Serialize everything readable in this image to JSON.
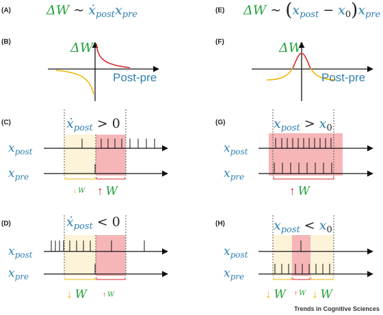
{
  "panels": {
    "A": {
      "label": "(A)",
      "eq_lhs": "ΔW",
      "eq_rel": " ~ ",
      "eq_rhs": "ẋpost xpre"
    },
    "B": {
      "label": "(B)",
      "dw": "ΔW",
      "x_axis": "Post-pre"
    },
    "C": {
      "label": "(C)",
      "title": "ẋpost > 0",
      "row_post": "xpost",
      "row_pre": "xpre",
      "left_arrow": "↓",
      "left_w": "W",
      "right_arrow": "↑",
      "right_w": "W"
    },
    "D": {
      "label": "(D)",
      "title": "ẋpost < 0",
      "row_post": "xpost",
      "row_pre": "xpre",
      "left_arrow": "↓",
      "left_w": "W",
      "right_arrow": "↑",
      "right_w": "W"
    },
    "E": {
      "label": "(E)",
      "eq_lhs": "ΔW",
      "eq_rel": " ~ ",
      "eq_rhs": "(xpost − x0) xpre"
    },
    "F": {
      "label": "(F)",
      "dw": "ΔW",
      "x_axis": "Post-pre"
    },
    "G": {
      "label": "(G)",
      "title": "xpost > x0",
      "row_post": "xpost",
      "row_pre": "xpre",
      "arrow": "↑",
      "w": "W"
    },
    "H": {
      "label": "(H)",
      "title": "xpost < x0",
      "row_post": "xpost",
      "row_pre": "xpre",
      "left_arrow": "↓",
      "left_w": "W",
      "mid_arrow": "↑",
      "mid_w": "W",
      "right_arrow": "↓",
      "right_w": "W"
    }
  },
  "footer": "Trends in Cognitive Sciences",
  "colors": {
    "blue": "#2e7fb0",
    "green": "#22a13a",
    "red": "#d8262a",
    "orange": "#f0b400",
    "pink_fill": "#f6b6b8",
    "cream_fill": "#fdf3d8"
  }
}
